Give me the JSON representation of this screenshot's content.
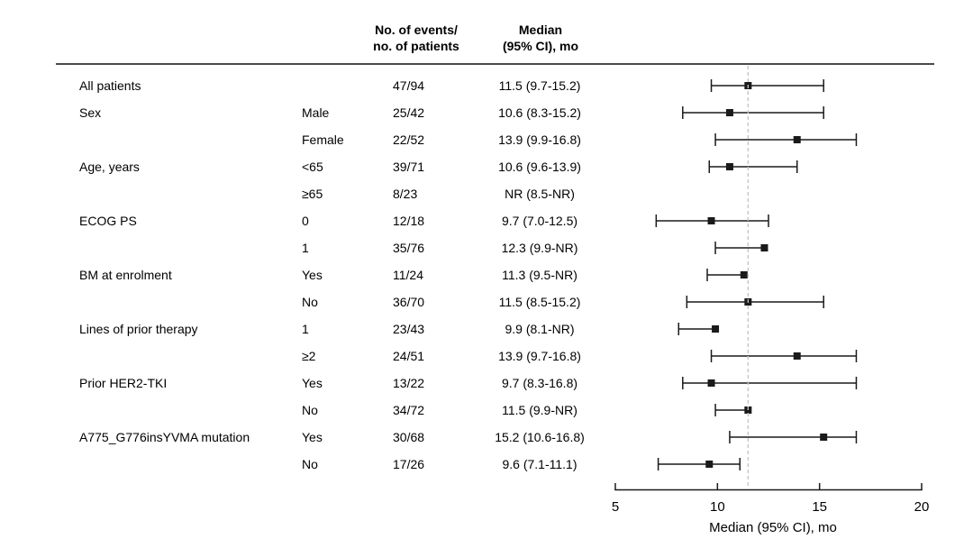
{
  "header": {
    "events_col": "No. of events/\nno. of patients",
    "median_col": "Median\n(95% CI), mo"
  },
  "chart_data": {
    "type": "forest",
    "xlabel": "Median (95% CI), mo",
    "xlim": [
      5,
      20
    ],
    "x_ticks": [
      5,
      10,
      15,
      20
    ],
    "reference_line": 11.5,
    "grid": false,
    "rows": [
      {
        "group": "All patients",
        "level": "",
        "events": "47/94",
        "median_text": "11.5 (9.7-15.2)",
        "median": 11.5,
        "lo": 9.7,
        "hi": 15.2
      },
      {
        "group": "Sex",
        "level": "Male",
        "events": "25/42",
        "median_text": "10.6 (8.3-15.2)",
        "median": 10.6,
        "lo": 8.3,
        "hi": 15.2
      },
      {
        "group": "",
        "level": "Female",
        "events": "22/52",
        "median_text": "13.9 (9.9-16.8)",
        "median": 13.9,
        "lo": 9.9,
        "hi": 16.8
      },
      {
        "group": "Age, years",
        "level": "<65",
        "events": "39/71",
        "median_text": "10.6 (9.6-13.9)",
        "median": 10.6,
        "lo": 9.6,
        "hi": 13.9
      },
      {
        "group": "",
        "level": "≥65",
        "events": "8/23",
        "median_text": "NR (8.5-NR)",
        "median": null,
        "lo": 8.5,
        "hi": null
      },
      {
        "group": "ECOG PS",
        "level": "0",
        "events": "12/18",
        "median_text": "9.7 (7.0-12.5)",
        "median": 9.7,
        "lo": 7.0,
        "hi": 12.5
      },
      {
        "group": "",
        "level": "1",
        "events": "35/76",
        "median_text": "12.3 (9.9-NR)",
        "median": 12.3,
        "lo": 9.9,
        "hi": null
      },
      {
        "group": "BM at enrolment",
        "level": "Yes",
        "events": "11/24",
        "median_text": "11.3 (9.5-NR)",
        "median": 11.3,
        "lo": 9.5,
        "hi": null
      },
      {
        "group": "",
        "level": "No",
        "events": "36/70",
        "median_text": "11.5 (8.5-15.2)",
        "median": 11.5,
        "lo": 8.5,
        "hi": 15.2
      },
      {
        "group": "Lines of prior therapy",
        "level": "1",
        "events": "23/43",
        "median_text": "9.9 (8.1-NR)",
        "median": 9.9,
        "lo": 8.1,
        "hi": null
      },
      {
        "group": "",
        "level": "≥2",
        "events": "24/51",
        "median_text": "13.9 (9.7-16.8)",
        "median": 13.9,
        "lo": 9.7,
        "hi": 16.8
      },
      {
        "group": "Prior HER2-TKI",
        "level": "Yes",
        "events": "13/22",
        "median_text": "9.7 (8.3-16.8)",
        "median": 9.7,
        "lo": 8.3,
        "hi": 16.8
      },
      {
        "group": "",
        "level": "No",
        "events": "34/72",
        "median_text": "11.5 (9.9-NR)",
        "median": 11.5,
        "lo": 9.9,
        "hi": null
      },
      {
        "group": "A775_G776insYVMA mutation",
        "level": "Yes",
        "events": "30/68",
        "median_text": "15.2 (10.6-16.8)",
        "median": 15.2,
        "lo": 10.6,
        "hi": 16.8
      },
      {
        "group": "",
        "level": "No",
        "events": "17/26",
        "median_text": "9.6 (7.1-11.1)",
        "median": 9.6,
        "lo": 7.1,
        "hi": 11.1
      }
    ]
  },
  "colors": {
    "ink": "#1a1a1a",
    "top_rule": "#4a4a4a",
    "reference_line": "#c3c3c3",
    "text": "#000000"
  }
}
